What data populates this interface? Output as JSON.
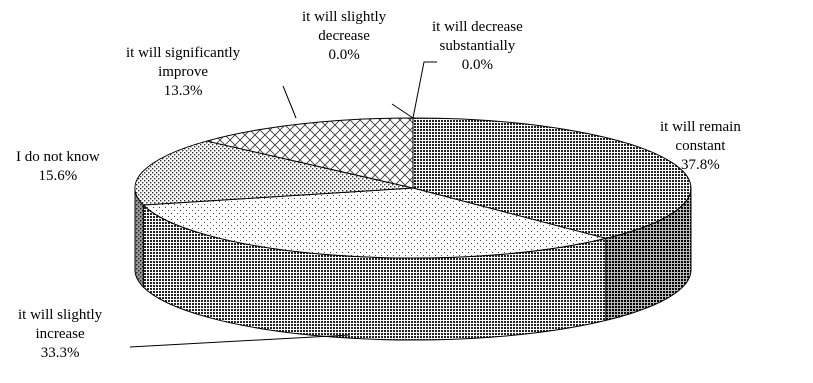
{
  "chart_data": {
    "type": "pie",
    "style": "3d",
    "start_angle_deg": -90,
    "direction": "clockwise",
    "slices": [
      {
        "label_lines": [
          "it will remain",
          "constant"
        ],
        "value_label": "37.8%",
        "value": 37.8,
        "pattern": "dense-dots",
        "color": "#555555"
      },
      {
        "label_lines": [
          "it will slightly",
          "increase"
        ],
        "value_label": "33.3%",
        "value": 33.3,
        "pattern": "sparse-dots",
        "color": "#ffffff"
      },
      {
        "label_lines": [
          "I do not know"
        ],
        "value_label": "15.6%",
        "value": 15.6,
        "pattern": "medium-dots",
        "color": "#aaaaaa"
      },
      {
        "label_lines": [
          "it will significantly",
          "improve"
        ],
        "value_label": "13.3%",
        "value": 13.3,
        "pattern": "crosshatch",
        "color": "#ffffff"
      },
      {
        "label_lines": [
          "it will slightly",
          "decrease"
        ],
        "value_label": "0.0%",
        "value": 0.0,
        "pattern": "none",
        "color": "#ffffff"
      },
      {
        "label_lines": [
          "it will decrease",
          "substantially"
        ],
        "value_label": "0.0%",
        "value": 0.0,
        "pattern": "none",
        "color": "#ffffff"
      }
    ],
    "legend": "none"
  }
}
